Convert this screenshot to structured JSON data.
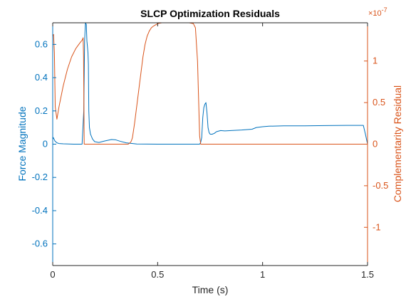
{
  "chart_data": {
    "type": "line",
    "title": "SLCP Optimization Residuals",
    "xlabel": "Time (s)",
    "ylabel_left": "Force Magnitude",
    "ylabel_right": "Complementarity Residual",
    "right_exponent_label": "×10",
    "right_exponent_power": "-7",
    "xlim": [
      0,
      1.5
    ],
    "ylim_left": [
      -0.73,
      0.73
    ],
    "ylim_right": [
      -1.46,
      1.46
    ],
    "x_ticks": [
      0,
      0.5,
      1,
      1.5
    ],
    "x_tick_labels": [
      "0",
      "0.5",
      "1",
      "1.5"
    ],
    "left_ticks": [
      0.6,
      0.4,
      0.2,
      0,
      -0.2,
      -0.4,
      -0.6
    ],
    "left_tick_labels": [
      "0.6",
      "0.4",
      "0.2",
      "0",
      "-0.2",
      "-0.4",
      "-0.6"
    ],
    "right_ticks": [
      1,
      0.5,
      0,
      -0.5,
      -1
    ],
    "right_tick_labels": [
      "1",
      "0.5",
      "0",
      "-0.5",
      "-1"
    ],
    "colors": {
      "left": "#0072bd",
      "right": "#d95319",
      "axis": "#262626"
    },
    "series": [
      {
        "axis": "left",
        "color": "#0072bd",
        "x": [
          0,
          0.003,
          0.01,
          0.02,
          0.03,
          0.05,
          0.1,
          0.14,
          0.148,
          0.152,
          0.156,
          0.16,
          0.163,
          0.166,
          0.168,
          0.17,
          0.172,
          0.175,
          0.18,
          0.19,
          0.2,
          0.22,
          0.25,
          0.28,
          0.3,
          0.32,
          0.35,
          0.4,
          0.5,
          0.6,
          0.7,
          0.705,
          0.71,
          0.715,
          0.72,
          0.725,
          0.73,
          0.735,
          0.74,
          0.745,
          0.75,
          0.76,
          0.77,
          0.78,
          0.8,
          0.82,
          0.85,
          0.9,
          0.95,
          0.97,
          1.0,
          1.03,
          1.1,
          1.2,
          1.3,
          1.4,
          1.48,
          1.49,
          1.5
        ],
        "values": [
          0.03,
          0.04,
          0.02,
          0.008,
          0.004,
          0.002,
          0.0,
          0.0,
          0.2,
          0.62,
          0.73,
          0.72,
          0.62,
          0.58,
          0.55,
          0.48,
          0.2,
          0.1,
          0.06,
          0.03,
          0.015,
          0.01,
          0.02,
          0.028,
          0.026,
          0.018,
          0.008,
          0.001,
          0.0,
          0.0,
          0.0,
          0.01,
          0.04,
          0.16,
          0.22,
          0.24,
          0.25,
          0.19,
          0.1,
          0.07,
          0.06,
          0.06,
          0.065,
          0.075,
          0.082,
          0.08,
          0.082,
          0.085,
          0.09,
          0.1,
          0.105,
          0.108,
          0.11,
          0.11,
          0.112,
          0.113,
          0.113,
          0.06,
          0.0
        ]
      },
      {
        "axis": "right",
        "color": "#d95319",
        "x": [
          0,
          0.004,
          0.008,
          0.012,
          0.02,
          0.03,
          0.05,
          0.07,
          0.09,
          0.11,
          0.13,
          0.14,
          0.145,
          0.147,
          0.15,
          0.2,
          0.3,
          0.33,
          0.36,
          0.37,
          0.375,
          0.38,
          0.39,
          0.4,
          0.41,
          0.42,
          0.43,
          0.44,
          0.45,
          0.46,
          0.47,
          0.48,
          0.5,
          0.52,
          0.6,
          0.65,
          0.67,
          0.68,
          0.69,
          0.7,
          0.705,
          0.71,
          1.5
        ],
        "values": [
          1.3,
          1.32,
          1.1,
          0.45,
          0.3,
          0.45,
          0.7,
          0.9,
          1.05,
          1.15,
          1.22,
          1.25,
          1.28,
          1.05,
          0.0,
          0.0,
          0.0,
          0.0,
          0.0,
          0.02,
          0.04,
          0.08,
          0.25,
          0.45,
          0.65,
          0.85,
          1.05,
          1.2,
          1.3,
          1.36,
          1.4,
          1.42,
          1.45,
          1.46,
          1.46,
          1.46,
          1.45,
          1.4,
          1.0,
          0.1,
          0.0,
          0.0,
          0.0
        ]
      }
    ]
  }
}
